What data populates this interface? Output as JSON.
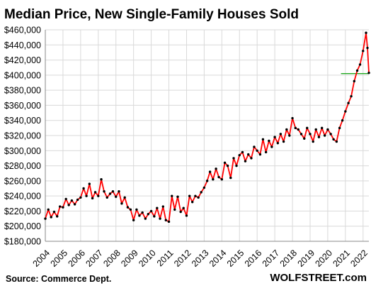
{
  "chart_data": {
    "type": "line",
    "title": "Median Price, New Single-Family Houses Sold",
    "source": "Source: Commerce Dept.",
    "brand": "WOLFSTREET.com",
    "ylim": [
      180000,
      460000
    ],
    "xlim": [
      2004,
      2022.33
    ],
    "yticks": [
      180000,
      200000,
      220000,
      240000,
      260000,
      280000,
      300000,
      320000,
      340000,
      360000,
      380000,
      400000,
      420000,
      440000,
      460000
    ],
    "ytick_labels": [
      "$180,000",
      "$200,000",
      "$220,000",
      "$240,000",
      "$260,000",
      "$280,000",
      "$300,000",
      "$320,000",
      "$340,000",
      "$360,000",
      "$380,000",
      "$400,000",
      "$420,000",
      "$440,000",
      "$460,000"
    ],
    "xticks": [
      2004,
      2005,
      2006,
      2007,
      2008,
      2009,
      2010,
      2011,
      2012,
      2013,
      2014,
      2015,
      2016,
      2017,
      2018,
      2019,
      2020,
      2021,
      2022
    ],
    "xtick_labels": [
      "2004",
      "2005",
      "2006",
      "2007",
      "2008",
      "2009",
      "2010",
      "2011",
      "2012",
      "2013",
      "2014",
      "2015",
      "2016",
      "2017",
      "2018",
      "2019",
      "2020",
      "2021",
      "2022"
    ],
    "grid": true,
    "line_color": "#ff0000",
    "marker_color": "#000000",
    "reference_line": {
      "y": 402000,
      "x_start": 2020.75,
      "x_end": 2022.33,
      "color": "#22aa22"
    },
    "series": [
      {
        "values": [
          [
            2004.0,
            210000
          ],
          [
            2004.17,
            222000
          ],
          [
            2004.33,
            212000
          ],
          [
            2004.5,
            219000
          ],
          [
            2004.67,
            213000
          ],
          [
            2004.83,
            226000
          ],
          [
            2005.0,
            225000
          ],
          [
            2005.17,
            236000
          ],
          [
            2005.33,
            228000
          ],
          [
            2005.5,
            234000
          ],
          [
            2005.67,
            229000
          ],
          [
            2005.83,
            235000
          ],
          [
            2006.0,
            238000
          ],
          [
            2006.17,
            250000
          ],
          [
            2006.33,
            240000
          ],
          [
            2006.5,
            256000
          ],
          [
            2006.67,
            237000
          ],
          [
            2006.83,
            245000
          ],
          [
            2007.0,
            240000
          ],
          [
            2007.17,
            262000
          ],
          [
            2007.33,
            246000
          ],
          [
            2007.5,
            238000
          ],
          [
            2007.67,
            243000
          ],
          [
            2007.83,
            246000
          ],
          [
            2008.0,
            239000
          ],
          [
            2008.17,
            246000
          ],
          [
            2008.33,
            230000
          ],
          [
            2008.5,
            238000
          ],
          [
            2008.67,
            225000
          ],
          [
            2008.83,
            222000
          ],
          [
            2009.0,
            208000
          ],
          [
            2009.17,
            222000
          ],
          [
            2009.33,
            214000
          ],
          [
            2009.5,
            218000
          ],
          [
            2009.67,
            210000
          ],
          [
            2009.83,
            216000
          ],
          [
            2010.0,
            220000
          ],
          [
            2010.17,
            213000
          ],
          [
            2010.33,
            224000
          ],
          [
            2010.5,
            210000
          ],
          [
            2010.67,
            226000
          ],
          [
            2010.83,
            208000
          ],
          [
            2011.0,
            206000
          ],
          [
            2011.17,
            240000
          ],
          [
            2011.33,
            222000
          ],
          [
            2011.5,
            239000
          ],
          [
            2011.67,
            219000
          ],
          [
            2011.83,
            224000
          ],
          [
            2012.0,
            214000
          ],
          [
            2012.17,
            240000
          ],
          [
            2012.33,
            232000
          ],
          [
            2012.5,
            240000
          ],
          [
            2012.67,
            238000
          ],
          [
            2012.83,
            245000
          ],
          [
            2013.0,
            251000
          ],
          [
            2013.17,
            260000
          ],
          [
            2013.33,
            272000
          ],
          [
            2013.5,
            262000
          ],
          [
            2013.67,
            276000
          ],
          [
            2013.83,
            265000
          ],
          [
            2014.0,
            262000
          ],
          [
            2014.17,
            284000
          ],
          [
            2014.33,
            280000
          ],
          [
            2014.5,
            264000
          ],
          [
            2014.67,
            290000
          ],
          [
            2014.83,
            280000
          ],
          [
            2015.0,
            294000
          ],
          [
            2015.17,
            298000
          ],
          [
            2015.33,
            286000
          ],
          [
            2015.5,
            295000
          ],
          [
            2015.67,
            290000
          ],
          [
            2015.83,
            305000
          ],
          [
            2016.0,
            300000
          ],
          [
            2016.17,
            295000
          ],
          [
            2016.33,
            315000
          ],
          [
            2016.5,
            298000
          ],
          [
            2016.67,
            313000
          ],
          [
            2016.83,
            305000
          ],
          [
            2017.0,
            318000
          ],
          [
            2017.17,
            310000
          ],
          [
            2017.33,
            322000
          ],
          [
            2017.5,
            312000
          ],
          [
            2017.67,
            328000
          ],
          [
            2017.83,
            320000
          ],
          [
            2018.0,
            343000
          ],
          [
            2018.17,
            330000
          ],
          [
            2018.33,
            328000
          ],
          [
            2018.5,
            322000
          ],
          [
            2018.67,
            316000
          ],
          [
            2018.83,
            330000
          ],
          [
            2019.0,
            322000
          ],
          [
            2019.17,
            312000
          ],
          [
            2019.33,
            328000
          ],
          [
            2019.5,
            318000
          ],
          [
            2019.67,
            330000
          ],
          [
            2019.83,
            320000
          ],
          [
            2020.0,
            328000
          ],
          [
            2020.17,
            322000
          ],
          [
            2020.33,
            315000
          ],
          [
            2020.5,
            312000
          ],
          [
            2020.67,
            330000
          ],
          [
            2020.83,
            340000
          ],
          [
            2021.0,
            352000
          ],
          [
            2021.17,
            363000
          ],
          [
            2021.33,
            372000
          ],
          [
            2021.5,
            392000
          ],
          [
            2021.67,
            406000
          ],
          [
            2021.83,
            414000
          ],
          [
            2022.0,
            432000
          ],
          [
            2022.17,
            456000
          ],
          [
            2022.25,
            436000
          ],
          [
            2022.33,
            403000
          ]
        ]
      }
    ]
  }
}
